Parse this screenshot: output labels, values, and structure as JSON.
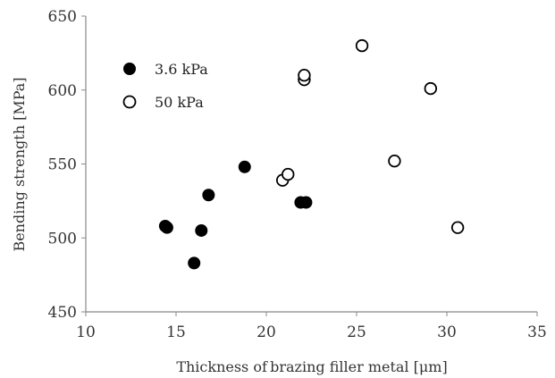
{
  "chart_data": {
    "type": "scatter",
    "xlabel": "Thickness of brazing  filler metal [μm]",
    "ylabel": "Bending strength [MPa]",
    "xlim": [
      10,
      35
    ],
    "ylim": [
      450,
      650
    ],
    "x_ticks": [
      10,
      15,
      20,
      25,
      30,
      35
    ],
    "y_ticks": [
      450,
      500,
      550,
      600,
      650
    ],
    "grid": false,
    "legend_position": "top-left",
    "series": [
      {
        "name": "3.6 kPa",
        "marker": "filled-circle",
        "color": "#000000",
        "points": [
          {
            "x": 14.4,
            "y": 508
          },
          {
            "x": 14.5,
            "y": 507
          },
          {
            "x": 16.0,
            "y": 483
          },
          {
            "x": 16.4,
            "y": 505
          },
          {
            "x": 16.8,
            "y": 529
          },
          {
            "x": 18.8,
            "y": 548
          },
          {
            "x": 21.9,
            "y": 524
          },
          {
            "x": 22.2,
            "y": 524
          }
        ]
      },
      {
        "name": "50 kPa",
        "marker": "open-circle",
        "color": "#000000",
        "points": [
          {
            "x": 20.9,
            "y": 539
          },
          {
            "x": 21.2,
            "y": 543
          },
          {
            "x": 22.1,
            "y": 607
          },
          {
            "x": 22.1,
            "y": 610
          },
          {
            "x": 25.3,
            "y": 630
          },
          {
            "x": 27.1,
            "y": 552
          },
          {
            "x": 29.1,
            "y": 601
          },
          {
            "x": 30.6,
            "y": 507
          }
        ]
      }
    ]
  }
}
